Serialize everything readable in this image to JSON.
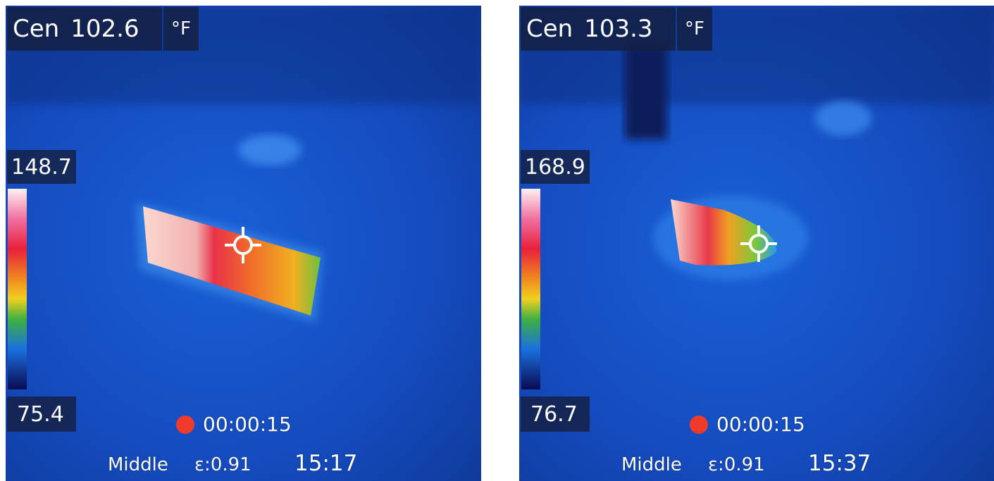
{
  "panels": [
    {
      "center_label": "Cen",
      "center_value": "102.6",
      "unit": "°F",
      "scale_max": "148.7",
      "scale_min": "75.4",
      "recording_time": "00:00:15",
      "mode": "Middle",
      "emissivity": "ε:0.91",
      "clock": "15:17"
    },
    {
      "center_label": "Cen",
      "center_value": "103.3",
      "unit": "°F",
      "scale_max": "168.9",
      "scale_min": "76.7",
      "recording_time": "00:00:15",
      "mode": "Middle",
      "emissivity": "ε:0.91",
      "clock": "15:37"
    }
  ]
}
